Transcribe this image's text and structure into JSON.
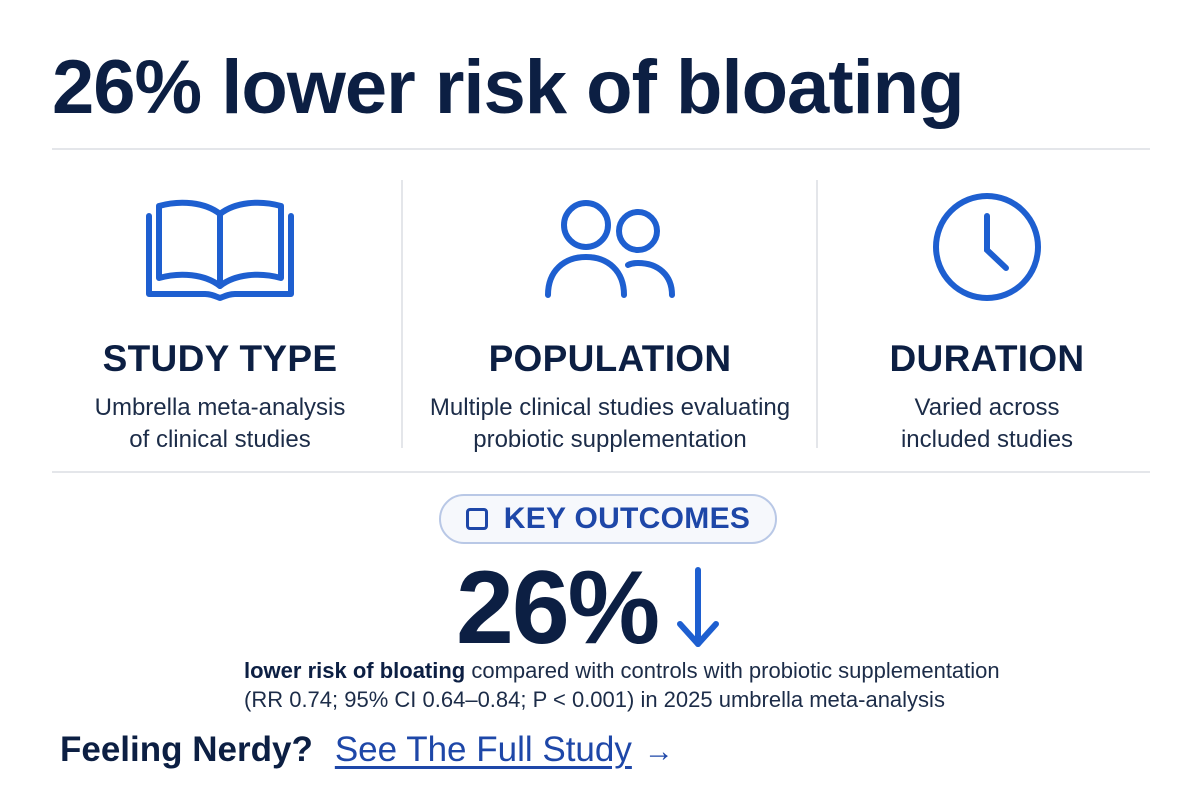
{
  "headline": "26% lower risk of bloating",
  "stats": [
    {
      "icon": "open-book-icon",
      "title": "STUDY TYPE",
      "lines": [
        "Umbrella meta-analysis",
        "of clinical studies"
      ]
    },
    {
      "icon": "people-icon",
      "title": "POPULATION",
      "lines": [
        "Multiple clinical studies evaluating",
        "probiotic supplementation"
      ]
    },
    {
      "icon": "clock-icon",
      "title": "DURATION",
      "lines": [
        "Varied across",
        "included studies"
      ]
    }
  ],
  "key_outcomes": {
    "label": "KEY OUTCOMES",
    "percent": "26%",
    "bold_text": "lower risk of bloating",
    "rest_text": " compared with controls with probiotic supplementation",
    "line2": "(RR 0.74; 95% CI 0.64–0.84; P < 0.001) in 2025 umbrella meta-analysis"
  },
  "footer": {
    "prompt": "Feeling Nerdy?",
    "link_label": "See The Full Study",
    "arrow": "→"
  },
  "colors": {
    "navy": "#0c1f43",
    "accent": "#1e47a8",
    "divider": "#e4e6ea"
  }
}
